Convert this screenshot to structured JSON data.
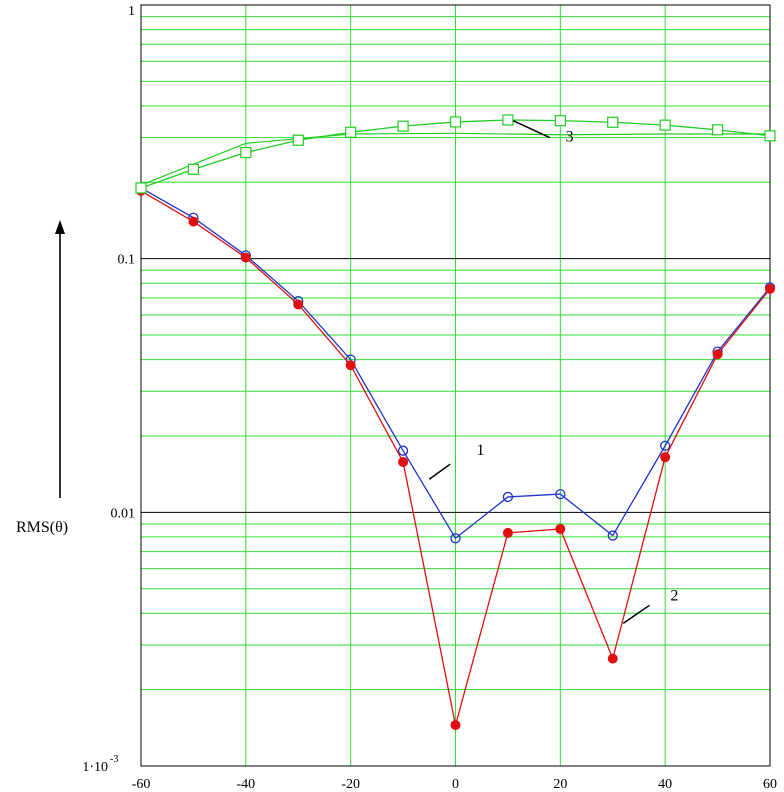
{
  "chart_data": {
    "type": "line",
    "title": "",
    "xlabel": "",
    "ylabel": "RMS(θ)",
    "y_scale": "log",
    "xlim": [
      -60,
      60
    ],
    "ylim": [
      0.001,
      1
    ],
    "grid": true,
    "x_ticks": [
      "-60",
      "-40",
      "-20",
      "0",
      "20",
      "40",
      "60"
    ],
    "x_tick_values": [
      -60,
      -40,
      -20,
      0,
      20,
      40,
      60
    ],
    "y_ticks": [
      {
        "value": 1,
        "label": "1"
      },
      {
        "value": 0.1,
        "label": "0.1"
      },
      {
        "value": 0.01,
        "label": "0.01"
      },
      {
        "value": 0.001,
        "label": "1·10",
        "exp": "-3"
      }
    ],
    "x": [
      -60,
      -50,
      -40,
      -30,
      -20,
      -10,
      0,
      10,
      20,
      30,
      40,
      50,
      60
    ],
    "series": [
      {
        "label": "1",
        "color": "#2233cc",
        "marker": "open-circle",
        "values": [
          0.19,
          0.145,
          0.103,
          0.068,
          0.04,
          0.0175,
          0.0079,
          0.0115,
          0.0118,
          0.0081,
          0.0183,
          0.043,
          0.077
        ]
      },
      {
        "label": "2",
        "color": "#e01010",
        "marker": "filled-circle",
        "values": [
          0.185,
          0.14,
          0.101,
          0.066,
          0.038,
          0.0158,
          0.00145,
          0.0083,
          0.0086,
          0.00265,
          0.0165,
          0.042,
          0.076
        ]
      },
      {
        "label": "3",
        "color": "#22cc22",
        "marker": "open-square",
        "values": [
          0.19,
          0.225,
          0.262,
          0.293,
          0.315,
          0.333,
          0.346,
          0.352,
          0.35,
          0.345,
          0.336,
          0.322,
          0.305
        ]
      }
    ],
    "extra_curve": {
      "color": "#22cc22",
      "x": [
        -60,
        -40,
        -20,
        0,
        20,
        40,
        60
      ],
      "values": [
        0.195,
        0.285,
        0.31,
        0.312,
        0.308,
        0.31,
        0.31
      ]
    },
    "callouts": [
      {
        "text": "1",
        "series": 0,
        "from": [
          -5,
          0.0135
        ],
        "to": [
          -1,
          0.0155
        ],
        "label_at": [
          4,
          0.0168
        ]
      },
      {
        "text": "2",
        "series": 1,
        "from": [
          32,
          0.00365
        ],
        "to": [
          37,
          0.0043
        ],
        "label_at": [
          41,
          0.0045
        ]
      },
      {
        "text": "3",
        "series": 2,
        "from": [
          11,
          0.35
        ],
        "to": [
          18,
          0.3
        ],
        "label_at": [
          21,
          0.29
        ]
      }
    ]
  }
}
